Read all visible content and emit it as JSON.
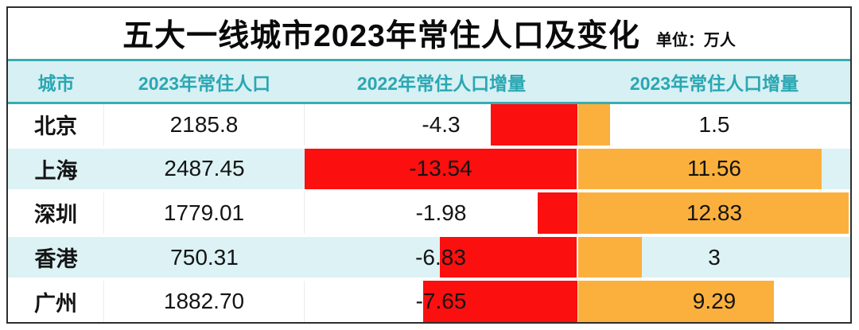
{
  "title": "五大一线城市2023年常住人口及变化",
  "unit_label": "单位：万人",
  "colors": {
    "negative_bar": "#fb0f0f",
    "positive_bar": "#fbb03d",
    "header_bg": "#d7f0f3",
    "zebra_bg": "#dcf2f5",
    "teal_text": "#2aa7b3",
    "teal_line": "#3aacb2",
    "outer_border": "#2e2e2e",
    "text": "#141414"
  },
  "chart_data": {
    "type": "bar",
    "subtype": "table-with-inline-bars",
    "title": "五大一线城市2023年常住人口及变化",
    "unit": "万人",
    "columns": [
      "城市",
      "2023年常住人口",
      "2022年常住人口增量",
      "2023年常住人口增量"
    ],
    "rows": [
      {
        "city": "北京",
        "population_2023": "2185.8",
        "delta_2022": -4.3,
        "delta_2022_label": "-4.3",
        "delta_2023": 1.5,
        "delta_2023_label": "1.5"
      },
      {
        "city": "上海",
        "population_2023": "2487.45",
        "delta_2022": -13.54,
        "delta_2022_label": "-13.54",
        "delta_2023": 11.56,
        "delta_2023_label": "11.56"
      },
      {
        "city": "深圳",
        "population_2023": "1779.01",
        "delta_2022": -1.98,
        "delta_2022_label": "-1.98",
        "delta_2023": 12.83,
        "delta_2023_label": "12.83"
      },
      {
        "city": "香港",
        "population_2023": "750.31",
        "delta_2022": -6.83,
        "delta_2022_label": "-6.83",
        "delta_2023": 3,
        "delta_2023_label": "3"
      },
      {
        "city": "广州",
        "population_2023": "1882.70",
        "delta_2022": -7.65,
        "delta_2022_label": "-7.65",
        "delta_2023": 9.29,
        "delta_2023_label": "9.29"
      }
    ],
    "bar_scale": {
      "delta_2022_max": 13.54,
      "delta_2023_max": 12.9
    },
    "layout": {
      "negative_bars_right_aligned": true,
      "positive_bars_left_aligned": true,
      "grid": false,
      "legend": false
    }
  }
}
